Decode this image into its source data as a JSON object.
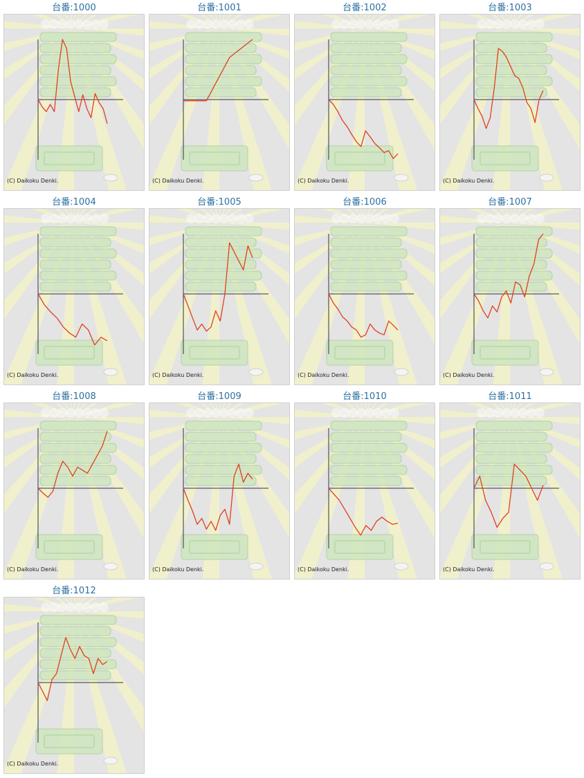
{
  "colors": {
    "panel_bg": "#e4e4e4",
    "panel_border": "#cfcfcf",
    "title": "#2a6fa0",
    "line": "#e0401a",
    "axis": "#333333",
    "ray": "#f6f4c4",
    "machine": "#cfe6c0"
  },
  "copyright": "(C) Daikoku Denki.",
  "machines": [
    {
      "label": "台番:1000",
      "chart_data": {
        "type": "line",
        "ylim": [
          -100,
          100
        ],
        "values": [
          0,
          -12,
          -20,
          -8,
          -20,
          50,
          100,
          85,
          30,
          5,
          -20,
          8,
          -15,
          -30,
          10,
          -5,
          -15,
          -40
        ]
      }
    },
    {
      "label": "台番:1001",
      "chart_data": {
        "type": "line",
        "ylim": [
          -100,
          100
        ],
        "values": [
          -2,
          -2,
          70,
          100
        ]
      }
    },
    {
      "label": "台番:1002",
      "chart_data": {
        "type": "line",
        "ylim": [
          -100,
          100
        ],
        "values": [
          0,
          -8,
          -20,
          -35,
          -45,
          -58,
          -70,
          -78,
          -52,
          -62,
          -73,
          -80,
          -88,
          -85,
          -98,
          -90
        ]
      }
    },
    {
      "label": "台番:1003",
      "chart_data": {
        "type": "line",
        "ylim": [
          -100,
          100
        ],
        "values": [
          0,
          -15,
          -28,
          -48,
          -30,
          20,
          85,
          80,
          70,
          55,
          40,
          35,
          20,
          -5,
          -15,
          -38,
          0,
          15
        ]
      }
    },
    {
      "label": "台番:1004",
      "chart_data": {
        "type": "line",
        "ylim": [
          -100,
          100
        ],
        "values": [
          0,
          -18,
          -30,
          -40,
          -55,
          -65,
          -72,
          -50,
          -60,
          -85,
          -72,
          -78
        ]
      }
    },
    {
      "label": "台番:1005",
      "chart_data": {
        "type": "line",
        "ylim": [
          -100,
          100
        ],
        "values": [
          0,
          -20,
          -40,
          -60,
          -50,
          -62,
          -55,
          -28,
          -45,
          0,
          85,
          70,
          55,
          40,
          80,
          60
        ]
      }
    },
    {
      "label": "台番:1006",
      "chart_data": {
        "type": "line",
        "ylim": [
          -100,
          100
        ],
        "values": [
          0,
          -15,
          -25,
          -38,
          -45,
          -55,
          -60,
          -72,
          -68,
          -50,
          -60,
          -65,
          -68,
          -45,
          -52,
          -60
        ]
      }
    },
    {
      "label": "台番:1007",
      "chart_data": {
        "type": "line",
        "ylim": [
          -100,
          100
        ],
        "values": [
          0,
          -12,
          -28,
          -40,
          -20,
          -30,
          -5,
          5,
          -15,
          20,
          15,
          -5,
          30,
          50,
          90,
          100
        ]
      }
    },
    {
      "label": "台番:1008",
      "chart_data": {
        "type": "line",
        "ylim": [
          -100,
          100
        ],
        "values": [
          0,
          -8,
          -15,
          -5,
          25,
          45,
          35,
          20,
          35,
          30,
          25,
          40,
          55,
          70,
          95
        ]
      }
    },
    {
      "label": "台番:1009",
      "chart_data": {
        "type": "line",
        "ylim": [
          -100,
          100
        ],
        "values": [
          0,
          -20,
          -38,
          -60,
          -50,
          -68,
          -55,
          -70,
          -45,
          -35,
          -60,
          20,
          40,
          10,
          25,
          15
        ]
      }
    },
    {
      "label": "台番:1010",
      "chart_data": {
        "type": "line",
        "ylim": [
          -100,
          100
        ],
        "values": [
          0,
          -10,
          -20,
          -35,
          -50,
          -65,
          -78,
          -62,
          -70,
          -55,
          -48,
          -55,
          -60,
          -58
        ]
      }
    },
    {
      "label": "台番:1011",
      "chart_data": {
        "type": "line",
        "ylim": [
          -100,
          100
        ],
        "values": [
          0,
          20,
          -20,
          -40,
          -65,
          -50,
          -40,
          40,
          30,
          20,
          0,
          -20,
          5
        ]
      }
    },
    {
      "label": "台番:1012",
      "chart_data": {
        "type": "line",
        "ylim": [
          -100,
          100
        ],
        "values": [
          0,
          -15,
          -30,
          5,
          15,
          45,
          75,
          55,
          40,
          60,
          45,
          40,
          15,
          40,
          30,
          35
        ]
      }
    }
  ]
}
